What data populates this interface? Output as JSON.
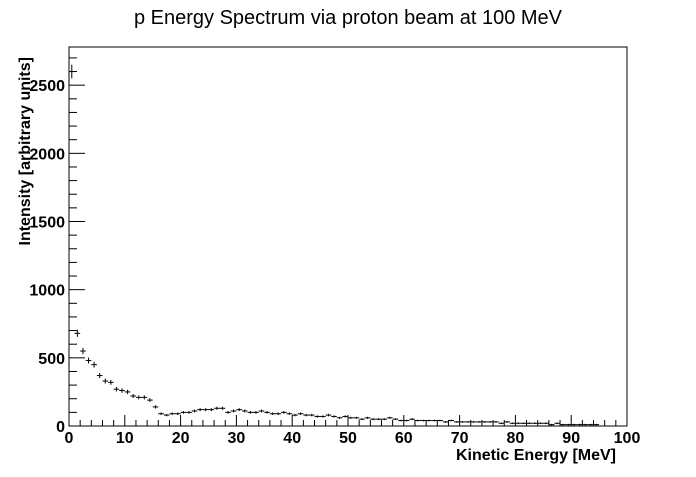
{
  "chart_data": {
    "type": "scatter",
    "title": "p Energy Spectrum via proton beam at 100 MeV",
    "xlabel": "Kinetic Energy [MeV]",
    "ylabel": "Intensity [arbitrary units]",
    "xlim": [
      0,
      100
    ],
    "ylim": [
      0,
      2780
    ],
    "xticks": [
      "0",
      "10",
      "20",
      "30",
      "40",
      "50",
      "60",
      "70",
      "80",
      "90",
      "100"
    ],
    "yticks": [
      "0",
      "500",
      "1000",
      "1500",
      "2000",
      "2500"
    ],
    "grid": false,
    "legend": "none",
    "marker": "cross-with-error-bars",
    "bin_width": 1,
    "x": [
      0.5,
      1.5,
      2.5,
      3.5,
      4.5,
      5.5,
      6.5,
      7.5,
      8.5,
      9.5,
      10.5,
      11.5,
      12.5,
      13.5,
      14.5,
      15.5,
      16.5,
      17.5,
      18.5,
      19.5,
      20.5,
      21.5,
      22.5,
      23.5,
      24.5,
      25.5,
      26.5,
      27.5,
      28.5,
      29.5,
      30.5,
      31.5,
      32.5,
      33.5,
      34.5,
      35.5,
      36.5,
      37.5,
      38.5,
      39.5,
      40.5,
      41.5,
      42.5,
      43.5,
      44.5,
      45.5,
      46.5,
      47.5,
      48.5,
      49.5,
      50.5,
      51.5,
      52.5,
      53.5,
      54.5,
      55.5,
      56.5,
      57.5,
      58.5,
      59.5,
      60.5,
      61.5,
      62.5,
      63.5,
      64.5,
      65.5,
      66.5,
      67.5,
      68.5,
      69.5,
      70.5,
      71.5,
      72.5,
      73.5,
      74.5,
      75.5,
      76.5,
      77.5,
      78.5,
      79.5,
      80.5,
      81.5,
      82.5,
      83.5,
      84.5,
      85.5,
      86.5,
      87.5,
      88.5,
      89.5,
      90.5,
      91.5,
      92.5,
      93.5,
      94.5,
      95.5,
      96.5,
      97.5,
      98.5,
      99.5
    ],
    "values": [
      2600,
      680,
      550,
      480,
      450,
      370,
      330,
      320,
      270,
      260,
      250,
      220,
      210,
      210,
      190,
      140,
      90,
      80,
      90,
      90,
      100,
      100,
      110,
      120,
      120,
      120,
      130,
      130,
      100,
      110,
      120,
      110,
      100,
      100,
      110,
      100,
      90,
      90,
      100,
      90,
      80,
      90,
      80,
      80,
      70,
      70,
      80,
      70,
      60,
      70,
      60,
      60,
      50,
      60,
      50,
      50,
      50,
      60,
      50,
      40,
      40,
      50,
      40,
      40,
      40,
      40,
      40,
      30,
      40,
      30,
      30,
      30,
      30,
      30,
      30,
      30,
      30,
      20,
      30,
      20,
      20,
      20,
      20,
      20,
      20,
      20,
      10,
      20,
      10,
      10,
      10,
      10,
      10,
      10,
      10,
      0,
      0,
      0,
      0,
      0
    ]
  }
}
